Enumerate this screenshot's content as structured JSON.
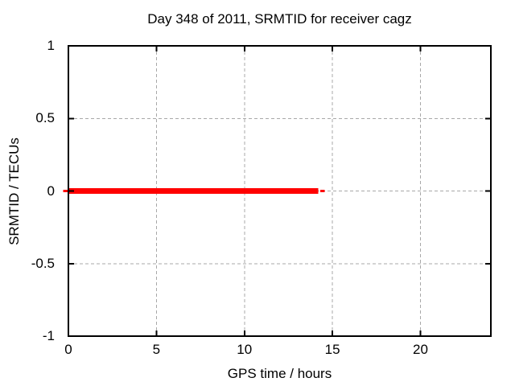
{
  "chart_data": {
    "type": "line",
    "title": "Day 348 of 2011, SRMTID for receiver cagz",
    "xlabel": "GPS time / hours",
    "ylabel": "SRMTID / TECUs",
    "xlim": [
      0,
      24
    ],
    "ylim": [
      -1,
      1
    ],
    "x_ticks": [
      0,
      5,
      10,
      15,
      20
    ],
    "x_tick_labels": [
      "0",
      "5",
      "10",
      "15",
      "20"
    ],
    "y_ticks": [
      -1,
      -0.5,
      0,
      0.5,
      1
    ],
    "y_tick_labels": [
      "-1",
      "-0.5",
      "0",
      "0.5",
      "1"
    ],
    "grid": true,
    "grid_style": "dashed",
    "legend": "none",
    "colors": {
      "series": "#ff0000",
      "grid": "#a8a8a8",
      "border": "#000000",
      "background": "#ffffff",
      "text": "#000000"
    },
    "series": [
      {
        "name": "SRMTID",
        "color": "#ff0000",
        "description": "Constant SRMTID value of 0 TECUs from hour 0 to about hour 14.2, short thin final dash near hour 14.4; no data afterwards",
        "segments": [
          {
            "x_start": -0.3,
            "x_end": 0,
            "y": 0,
            "thickness_px": 3
          },
          {
            "x_start": 0,
            "x_end": 14.2,
            "y": 0,
            "thickness_px": 7
          },
          {
            "x_start": 14.3,
            "x_end": 14.55,
            "y": 0,
            "thickness_px": 3
          }
        ]
      }
    ]
  }
}
